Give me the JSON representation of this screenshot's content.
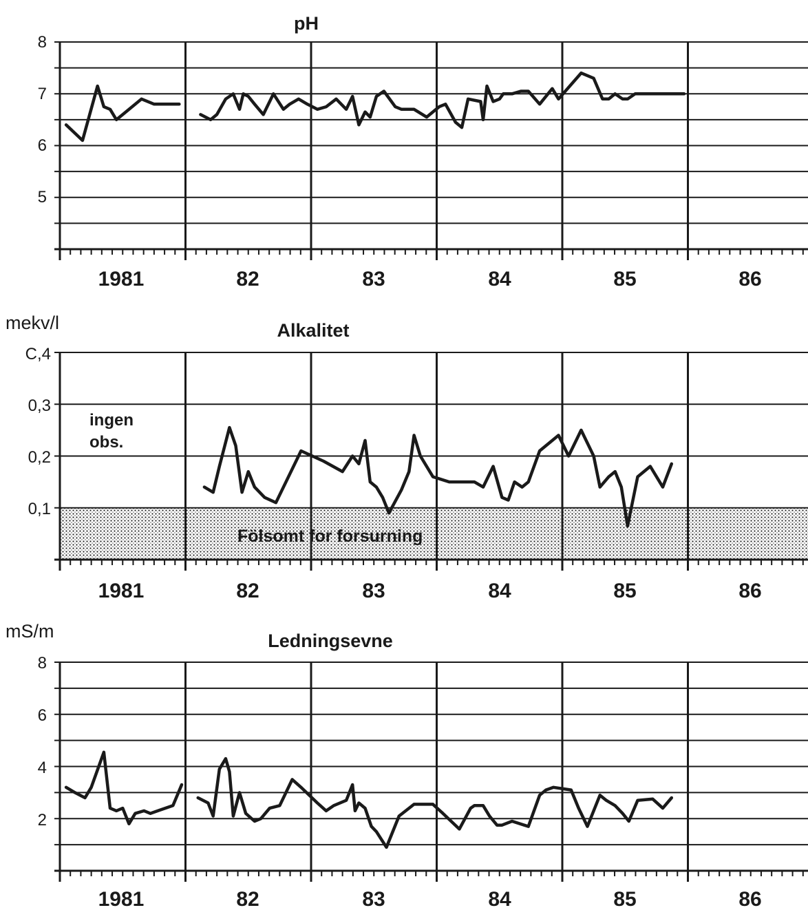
{
  "chart_data": [
    {
      "type": "line",
      "title": "pH",
      "ylabel": "",
      "ylim": [
        4,
        8
      ],
      "yticks": [
        "5",
        "6",
        "7",
        "8"
      ],
      "x_labels": [
        "1981",
        "82",
        "83",
        "84",
        "85",
        "86"
      ],
      "xlim": [
        1981,
        1987
      ],
      "series": [
        {
          "x": [
            1981.05,
            1981.18,
            1981.3,
            1981.35,
            1981.4,
            1981.45,
            1981.5,
            1981.65,
            1981.75,
            1981.95
          ],
          "y": [
            6.4,
            6.1,
            7.15,
            6.75,
            6.7,
            6.5,
            6.6,
            6.9,
            6.8,
            6.8
          ]
        },
        {
          "x": [
            1982.12,
            1982.2,
            1982.25,
            1982.32,
            1982.38,
            1982.43,
            1982.46,
            1982.5,
            1982.55,
            1982.62,
            1982.7,
            1982.78,
            1982.83,
            1982.9,
            1982.97,
            1983.05,
            1983.12,
            1983.2,
            1983.28,
            1983.33,
            1983.38,
            1983.43,
            1983.47,
            1983.52,
            1983.58,
            1983.67,
            1983.72,
            1983.82,
            1983.92,
            1984.02,
            1984.07,
            1984.15,
            1984.2,
            1984.25,
            1984.35,
            1984.37,
            1984.4,
            1984.45,
            1984.5,
            1984.53,
            1984.6,
            1984.67,
            1984.73,
            1984.82,
            1984.92,
            1984.97,
            1985.15,
            1985.25,
            1985.32,
            1985.37,
            1985.42,
            1985.48,
            1985.52,
            1985.58,
            1985.65,
            1985.73,
            1985.8,
            1985.88,
            1985.97
          ],
          "y": [
            6.6,
            6.5,
            6.6,
            6.9,
            7.0,
            6.7,
            7.0,
            6.95,
            6.8,
            6.6,
            7.0,
            6.7,
            6.8,
            6.9,
            6.8,
            6.7,
            6.75,
            6.9,
            6.7,
            6.95,
            6.4,
            6.65,
            6.55,
            6.95,
            7.05,
            6.75,
            6.7,
            6.7,
            6.55,
            6.75,
            6.8,
            6.45,
            6.35,
            6.9,
            6.85,
            6.5,
            7.15,
            6.85,
            6.9,
            7.0,
            7.0,
            7.05,
            7.05,
            6.8,
            7.1,
            6.9,
            7.4,
            7.3,
            6.9,
            6.9,
            7.0,
            6.9,
            6.9,
            7.0,
            7.0,
            7.0,
            7.0,
            7.0,
            7.0
          ]
        }
      ]
    },
    {
      "type": "line",
      "title": "Alkalitet",
      "ylabel": "mekv/l",
      "ylim": [
        0,
        0.4
      ],
      "yticks": [
        "0,1",
        "0,2",
        "0,3",
        "C,4"
      ],
      "x_labels": [
        "1981",
        "82",
        "83",
        "84",
        "85",
        "86"
      ],
      "xlim": [
        1981,
        1987
      ],
      "annotations": [
        "ingen obs.",
        "Fölsomt for forsurning"
      ],
      "shaded_band": [
        0,
        0.1
      ],
      "series": [
        {
          "x": [
            1982.15,
            1982.22,
            1982.27,
            1982.35,
            1982.4,
            1982.45,
            1982.5,
            1982.55,
            1982.63,
            1982.72,
            1982.92,
            1983.1,
            1983.25,
            1983.33,
            1983.38,
            1983.43,
            1983.47,
            1983.52,
            1983.57,
            1983.62,
            1983.72,
            1983.78,
            1983.82,
            1983.87,
            1983.97,
            1984.1,
            1984.3,
            1984.37,
            1984.45,
            1984.52,
            1984.57,
            1984.62,
            1984.68,
            1984.73,
            1984.82,
            1984.97,
            1985.05,
            1985.15,
            1985.25,
            1985.3,
            1985.37,
            1985.42,
            1985.47,
            1985.52,
            1985.6,
            1985.7,
            1985.8,
            1985.87
          ],
          "y": [
            0.14,
            0.13,
            0.18,
            0.255,
            0.22,
            0.13,
            0.17,
            0.14,
            0.12,
            0.11,
            0.21,
            0.19,
            0.17,
            0.2,
            0.185,
            0.23,
            0.15,
            0.14,
            0.12,
            0.09,
            0.135,
            0.17,
            0.24,
            0.2,
            0.16,
            0.15,
            0.15,
            0.14,
            0.18,
            0.12,
            0.115,
            0.15,
            0.14,
            0.15,
            0.21,
            0.24,
            0.2,
            0.25,
            0.2,
            0.14,
            0.16,
            0.17,
            0.14,
            0.065,
            0.16,
            0.18,
            0.14,
            0.185
          ]
        }
      ]
    },
    {
      "type": "line",
      "title": "Ledningsevne",
      "ylabel": "mS/m",
      "ylim": [
        0,
        8
      ],
      "yticks": [
        "2",
        "4",
        "6",
        "8"
      ],
      "x_labels": [
        "1981",
        "82",
        "83",
        "84",
        "85",
        "86"
      ],
      "xlim": [
        1981,
        1987
      ],
      "series": [
        {
          "x": [
            1981.05,
            1981.12,
            1981.2,
            1981.25,
            1981.35,
            1981.4,
            1981.45,
            1981.5,
            1981.55,
            1981.6,
            1981.67,
            1981.72,
            1981.78,
            1981.9,
            1981.97
          ],
          "y": [
            3.2,
            3.0,
            2.8,
            3.2,
            4.55,
            2.4,
            2.3,
            2.4,
            1.8,
            2.2,
            2.3,
            2.2,
            2.3,
            2.5,
            3.3
          ]
        },
        {
          "x": [
            1982.1,
            1982.18,
            1982.22,
            1982.27,
            1982.32,
            1982.35,
            1982.38,
            1982.43,
            1982.48,
            1982.55,
            1982.6,
            1982.67,
            1982.75,
            1982.85,
            1982.92,
            1983.05,
            1983.12,
            1983.18,
            1983.28,
            1983.33,
            1983.35,
            1983.38,
            1983.43,
            1983.48,
            1983.52,
            1983.6,
            1983.7,
            1983.82,
            1983.97,
            1984.05,
            1984.18,
            1984.27,
            1984.3,
            1984.37,
            1984.42,
            1984.48,
            1984.52,
            1984.6,
            1984.73,
            1984.82,
            1984.87,
            1984.93,
            1985.07,
            1985.13,
            1985.2,
            1985.3,
            1985.35,
            1985.42,
            1985.48,
            1985.53,
            1985.6,
            1985.72,
            1985.8,
            1985.87
          ],
          "y": [
            2.8,
            2.6,
            2.1,
            3.9,
            4.3,
            3.8,
            2.1,
            3.0,
            2.2,
            1.9,
            2.0,
            2.4,
            2.5,
            3.5,
            3.2,
            2.6,
            2.3,
            2.5,
            2.7,
            3.3,
            2.3,
            2.6,
            2.4,
            1.7,
            1.5,
            0.9,
            2.1,
            2.55,
            2.55,
            2.2,
            1.6,
            2.4,
            2.5,
            2.5,
            2.1,
            1.75,
            1.75,
            1.9,
            1.7,
            2.9,
            3.1,
            3.2,
            3.1,
            2.4,
            1.7,
            2.9,
            2.7,
            2.5,
            2.2,
            1.9,
            2.7,
            2.75,
            2.4,
            2.8
          ]
        }
      ]
    }
  ]
}
